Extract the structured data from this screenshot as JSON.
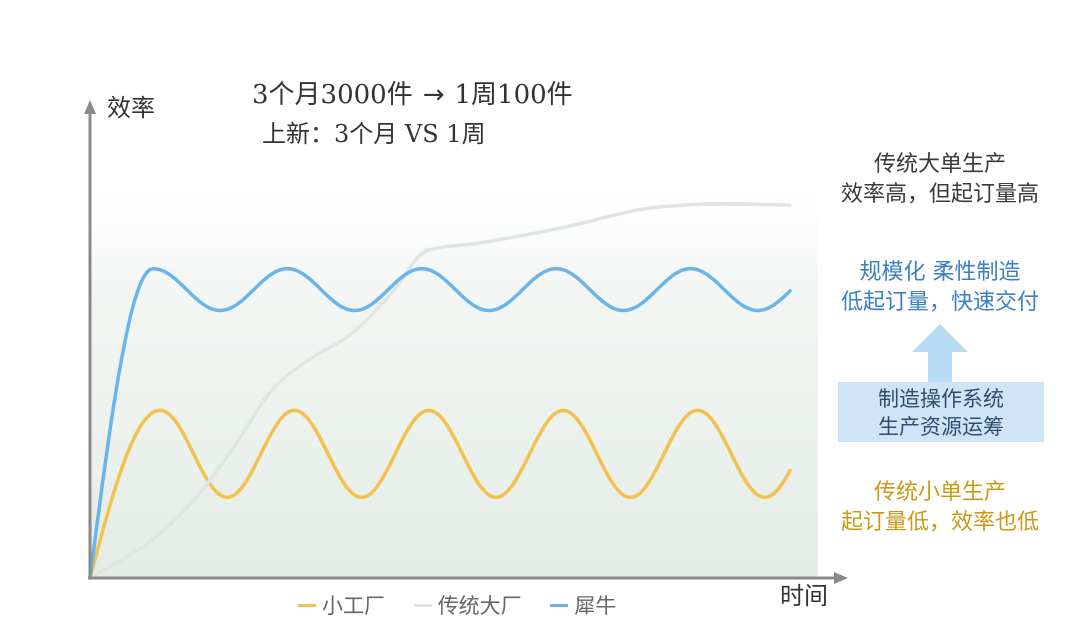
{
  "header": {
    "line1_left": "3个月3000件",
    "arrow": "→",
    "line1_right": "1周100件",
    "line2": "上新：3个月 VS 1周"
  },
  "notes": {
    "big_line1": "传统大单生产",
    "big_line2": "效率高，但起订量高",
    "xiniu_line1": "规模化 柔性制造",
    "xiniu_line2": "低起订量，快速交付",
    "system_line1": "制造操作系统",
    "system_line2": "生产资源运筹",
    "small_line1": "传统小单生产",
    "small_line2": "起订量低，效率也低"
  },
  "colors": {
    "small_factory": "#f2c14e",
    "big_factory": "#dfe6e1",
    "xiniu": "#6ab4ec",
    "axis": "#8a8a8a",
    "arrow_fill": "#b9dcf5"
  },
  "chart_data": {
    "type": "line",
    "xlabel": "时间",
    "ylabel": "效率",
    "grid": false,
    "legend_position": "bottom",
    "xlim": [
      0,
      100
    ],
    "ylim": [
      0,
      100
    ],
    "series": [
      {
        "name": "小工厂",
        "x": [
          0,
          10,
          15,
          20,
          25,
          30,
          35,
          40,
          45,
          50,
          55,
          60,
          65,
          70,
          75,
          80,
          85,
          90,
          95,
          100
        ],
        "y": [
          0,
          40,
          26,
          19,
          40,
          26,
          19,
          40,
          26,
          19,
          40,
          26,
          19,
          40,
          26,
          19,
          40,
          26,
          19,
          19
        ],
        "shape": "sine",
        "start_x": 0,
        "rise_end_x": 10,
        "amplitude": 10.4,
        "midline": 29.7,
        "period": 19.2,
        "end_x": 100
      },
      {
        "name": "传统大厂",
        "x": [
          0,
          8,
          14,
          20,
          26,
          32,
          37,
          43,
          47,
          50,
          55,
          62,
          68,
          73,
          78,
          83,
          90,
          100
        ],
        "y": [
          0,
          8,
          17,
          30,
          45,
          53,
          58,
          68,
          77,
          79,
          80,
          82,
          84,
          86,
          88,
          89,
          89.5,
          89.2
        ]
      },
      {
        "name": "犀牛",
        "x": [
          0,
          2,
          5,
          8,
          10,
          15,
          20,
          25,
          30,
          35,
          40,
          45,
          50,
          55,
          60,
          65,
          70,
          75,
          80,
          85,
          90,
          95,
          100
        ],
        "y": [
          0,
          30,
          55,
          65,
          65,
          64,
          70,
          74,
          70,
          64,
          70,
          74,
          70,
          64,
          70,
          74,
          70,
          64,
          70,
          74,
          70,
          64,
          64
        ],
        "shape": "sine",
        "start_x": 0,
        "rise_end_x": 9,
        "amplitude": 5.0,
        "midline": 69.0,
        "period": 19.2,
        "end_x": 100
      }
    ]
  }
}
